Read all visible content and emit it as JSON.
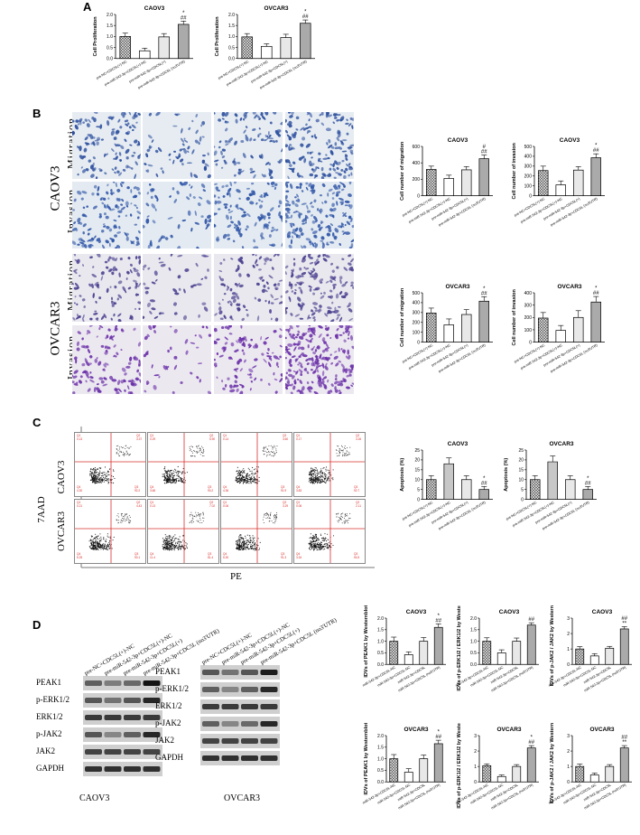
{
  "panel_labels": {
    "A": "A",
    "B": "B",
    "C": "C",
    "D": "D"
  },
  "x_group_labels": {
    "abc": [
      "pre-NC+CDC5L(+)-NC",
      "pre-miR-542-3p+CDC5L(+)-NC",
      "pre-miR-542-3p+CDC5L(+)",
      "pre-miR-542-3p+CDC5L (no3'UTR)"
    ],
    "d": [
      "miR-542-3p+CDC5L-NC",
      "miR-542-3p+CDC5L-NC",
      "miR-542-3p+CDC5L",
      "miR-542-3p+CDC5L (no3'UTR)"
    ]
  },
  "row_labels": {
    "caov3": "CAOV3",
    "ovcar3": "OVCAR3",
    "migration": "Migration",
    "invasion": "Invasion"
  },
  "flow_axes": {
    "y": "7AAD",
    "x": "PE"
  },
  "flow_quadrants": {
    "caov3": [
      [
        "0.13",
        "3.37",
        "4.30",
        "92.2"
      ],
      [
        "0.29",
        "5.90",
        "3.66",
        "90.2"
      ],
      [
        "0.14",
        "3.60",
        "4.36",
        "91.9"
      ],
      [
        "0.17",
        "3.26",
        "3.83",
        "92.7"
      ]
    ],
    "ovcar3": [
      [
        "0.21",
        "4.43",
        "5.25",
        "90.1"
      ],
      [
        "0.13",
        "7.02",
        "11.4",
        "81.4"
      ],
      [
        "0.06",
        "3.29",
        "5.30",
        "91.3"
      ],
      [
        "0.08",
        "2.11",
        "3.34",
        "94.5"
      ]
    ]
  },
  "western": {
    "caov3_labels": [
      "PEAK1",
      "p-ERK1/2",
      "ERK1/2",
      "p-JAK2",
      "JAK2",
      "GAPDH"
    ],
    "ovcar3_labels": [
      "PEAK1",
      "p-ERK1/2",
      "ERK1/2",
      "p-JAK2",
      "JAK2",
      "GAPDH"
    ],
    "lane_labels": [
      "pre-NC+CDC5L(+)-NC",
      "pre-miR-542-3p+CDC5L(+)-NC",
      "pre-miR-542-3p+CDC5L(+)",
      "pre-miR-542-3p+CDC5L (no3'UTR)"
    ],
    "caov3_title": "CAOV3",
    "ovcar3_title": "OVCAR3"
  },
  "chart_data": [
    {
      "id": "a1",
      "type": "bar",
      "title": "CAOV3",
      "ylabel": "Cell Proliferation",
      "ylim": [
        0,
        2.0
      ],
      "yticks": [
        "0.0",
        "0.5",
        "1.0",
        "1.5",
        "2.0"
      ],
      "values": [
        1.0,
        0.35,
        0.98,
        1.55
      ],
      "errors": [
        0.15,
        0.12,
        0.15,
        0.15
      ],
      "sig": [
        "",
        "",
        "",
        "*\n##"
      ],
      "labels": "abc"
    },
    {
      "id": "a2",
      "type": "bar",
      "title": "OVCAR3",
      "ylabel": "Cell Proliferation",
      "ylim": [
        0,
        2.0
      ],
      "yticks": [
        "0.0",
        "0.5",
        "1.0",
        "1.5",
        "2.0"
      ],
      "values": [
        0.98,
        0.55,
        0.95,
        1.6
      ],
      "errors": [
        0.15,
        0.12,
        0.15,
        0.15
      ],
      "sig": [
        "",
        "",
        "",
        "*\n##"
      ],
      "labels": "abc"
    },
    {
      "id": "b1",
      "type": "bar",
      "title": "CAOV3",
      "ylabel": "Cell number of migration",
      "ylim": [
        0,
        600
      ],
      "yticks": [
        "0",
        "200",
        "400",
        "600"
      ],
      "values": [
        320,
        210,
        315,
        450
      ],
      "errors": [
        40,
        40,
        40,
        45
      ],
      "sig": [
        "",
        "",
        "",
        "#\n##"
      ],
      "labels": "abc"
    },
    {
      "id": "b2",
      "type": "bar",
      "title": "CAOV3",
      "ylabel": "Cell number of invasion",
      "ylim": [
        0,
        500
      ],
      "yticks": [
        "0",
        "100",
        "200",
        "300",
        "400",
        "500"
      ],
      "values": [
        255,
        110,
        260,
        385
      ],
      "errors": [
        45,
        40,
        35,
        40
      ],
      "sig": [
        "",
        "",
        "",
        "*\n##"
      ],
      "labels": "abc"
    },
    {
      "id": "b3",
      "type": "bar",
      "title": "OVCAR3",
      "ylabel": "Cell number of migration",
      "ylim": [
        0,
        500
      ],
      "yticks": [
        "0",
        "100",
        "200",
        "300",
        "400",
        "500"
      ],
      "values": [
        295,
        175,
        280,
        415
      ],
      "errors": [
        50,
        60,
        50,
        45
      ],
      "sig": [
        "",
        "",
        "",
        "*\n##"
      ],
      "labels": "abc"
    },
    {
      "id": "b4",
      "type": "bar",
      "title": "OVCAR3",
      "ylabel": "Cell number of invasion",
      "ylim": [
        0,
        400
      ],
      "yticks": [
        "0",
        "100",
        "200",
        "300",
        "400"
      ],
      "values": [
        195,
        95,
        200,
        325
      ],
      "errors": [
        45,
        40,
        55,
        45
      ],
      "sig": [
        "",
        "",
        "",
        "*\n##"
      ],
      "labels": "abc"
    },
    {
      "id": "c1",
      "type": "bar",
      "title": "CAOV3",
      "ylabel": "Apoptosis (%)",
      "ylim": [
        0,
        25
      ],
      "yticks": [
        "0",
        "5",
        "10",
        "15",
        "20",
        "25"
      ],
      "values": [
        10,
        18,
        10,
        5
      ],
      "errors": [
        2,
        3,
        2,
        1.5
      ],
      "sig": [
        "",
        "",
        "",
        "*\n##"
      ],
      "labels": "abc"
    },
    {
      "id": "c2",
      "type": "bar",
      "title": "OVCAR3",
      "ylabel": "Apoptosis (%)",
      "ylim": [
        0,
        25
      ],
      "yticks": [
        "0",
        "5",
        "10",
        "15",
        "20",
        "25"
      ],
      "values": [
        10,
        19,
        10,
        5
      ],
      "errors": [
        2,
        3,
        2,
        1.5
      ],
      "sig": [
        "",
        "",
        "",
        "*\n##"
      ],
      "labels": "abc"
    },
    {
      "id": "d1",
      "type": "bar",
      "title": "CAOV3",
      "ylabel": "IDVs of PEAK1 by Westernblot",
      "ylim": [
        0,
        2.0
      ],
      "yticks": [
        "0.0",
        "0.5",
        "1.0",
        "1.5",
        "2.0"
      ],
      "values": [
        1.0,
        0.42,
        1.0,
        1.6
      ],
      "errors": [
        0.18,
        0.12,
        0.16,
        0.15
      ],
      "sig": [
        "",
        "",
        "",
        "*\n##"
      ],
      "labels": "d"
    },
    {
      "id": "d2",
      "type": "bar",
      "title": "CAOV3",
      "ylabel": "IDVs of p-ERK1/2 / ERK1/2 by Westernblot",
      "ylim": [
        0,
        2.0
      ],
      "yticks": [
        "0.0",
        "0.5",
        "1.0",
        "1.5",
        "2.0"
      ],
      "values": [
        1.0,
        0.5,
        1.0,
        1.7
      ],
      "errors": [
        0.15,
        0.13,
        0.14,
        0.1
      ],
      "sig": [
        "",
        "",
        "",
        "##"
      ],
      "labels": "d"
    },
    {
      "id": "d3",
      "type": "bar",
      "title": "CAOV3",
      "ylabel": "IDVs of p-JAK2 / JAK2 by Westernblot",
      "ylim": [
        0,
        3
      ],
      "yticks": [
        "0",
        "1",
        "2",
        "3"
      ],
      "values": [
        1.0,
        0.55,
        1.05,
        2.3
      ],
      "errors": [
        0.15,
        0.15,
        0.12,
        0.15
      ],
      "sig": [
        "",
        "",
        "",
        "##\n**"
      ],
      "labels": "d"
    },
    {
      "id": "d4",
      "type": "bar",
      "title": "OVCAR3",
      "ylabel": "IDVs of PEAK1 by Westernblot",
      "ylim": [
        0,
        2.0
      ],
      "yticks": [
        "0.0",
        "0.5",
        "1.0",
        "1.5",
        "2.0"
      ],
      "values": [
        1.0,
        0.42,
        1.0,
        1.65
      ],
      "errors": [
        0.18,
        0.15,
        0.16,
        0.15
      ],
      "sig": [
        "",
        "",
        "",
        "*\n##"
      ],
      "labels": "d"
    },
    {
      "id": "d5",
      "type": "bar",
      "title": "OVCAR3",
      "ylabel": "IDVs of p-ERK1/2 / ERK1/2 by Westernblot",
      "ylim": [
        0,
        3
      ],
      "yticks": [
        "0",
        "1",
        "2",
        "3"
      ],
      "values": [
        1.05,
        0.35,
        1.0,
        2.2
      ],
      "errors": [
        0.12,
        0.1,
        0.12,
        0.15
      ],
      "sig": [
        "",
        "",
        "",
        "*\n##"
      ],
      "labels": "d"
    },
    {
      "id": "d6",
      "type": "bar",
      "title": "OVCAR3",
      "ylabel": "IDVs of p-JAK2 / JAK2 by Westernblot",
      "ylim": [
        0,
        3
      ],
      "yticks": [
        "0",
        "1",
        "2",
        "3"
      ],
      "values": [
        1.0,
        0.45,
        1.0,
        2.2
      ],
      "errors": [
        0.15,
        0.12,
        0.12,
        0.15
      ],
      "sig": [
        "",
        "",
        "",
        "##\n**"
      ],
      "labels": "d"
    }
  ]
}
